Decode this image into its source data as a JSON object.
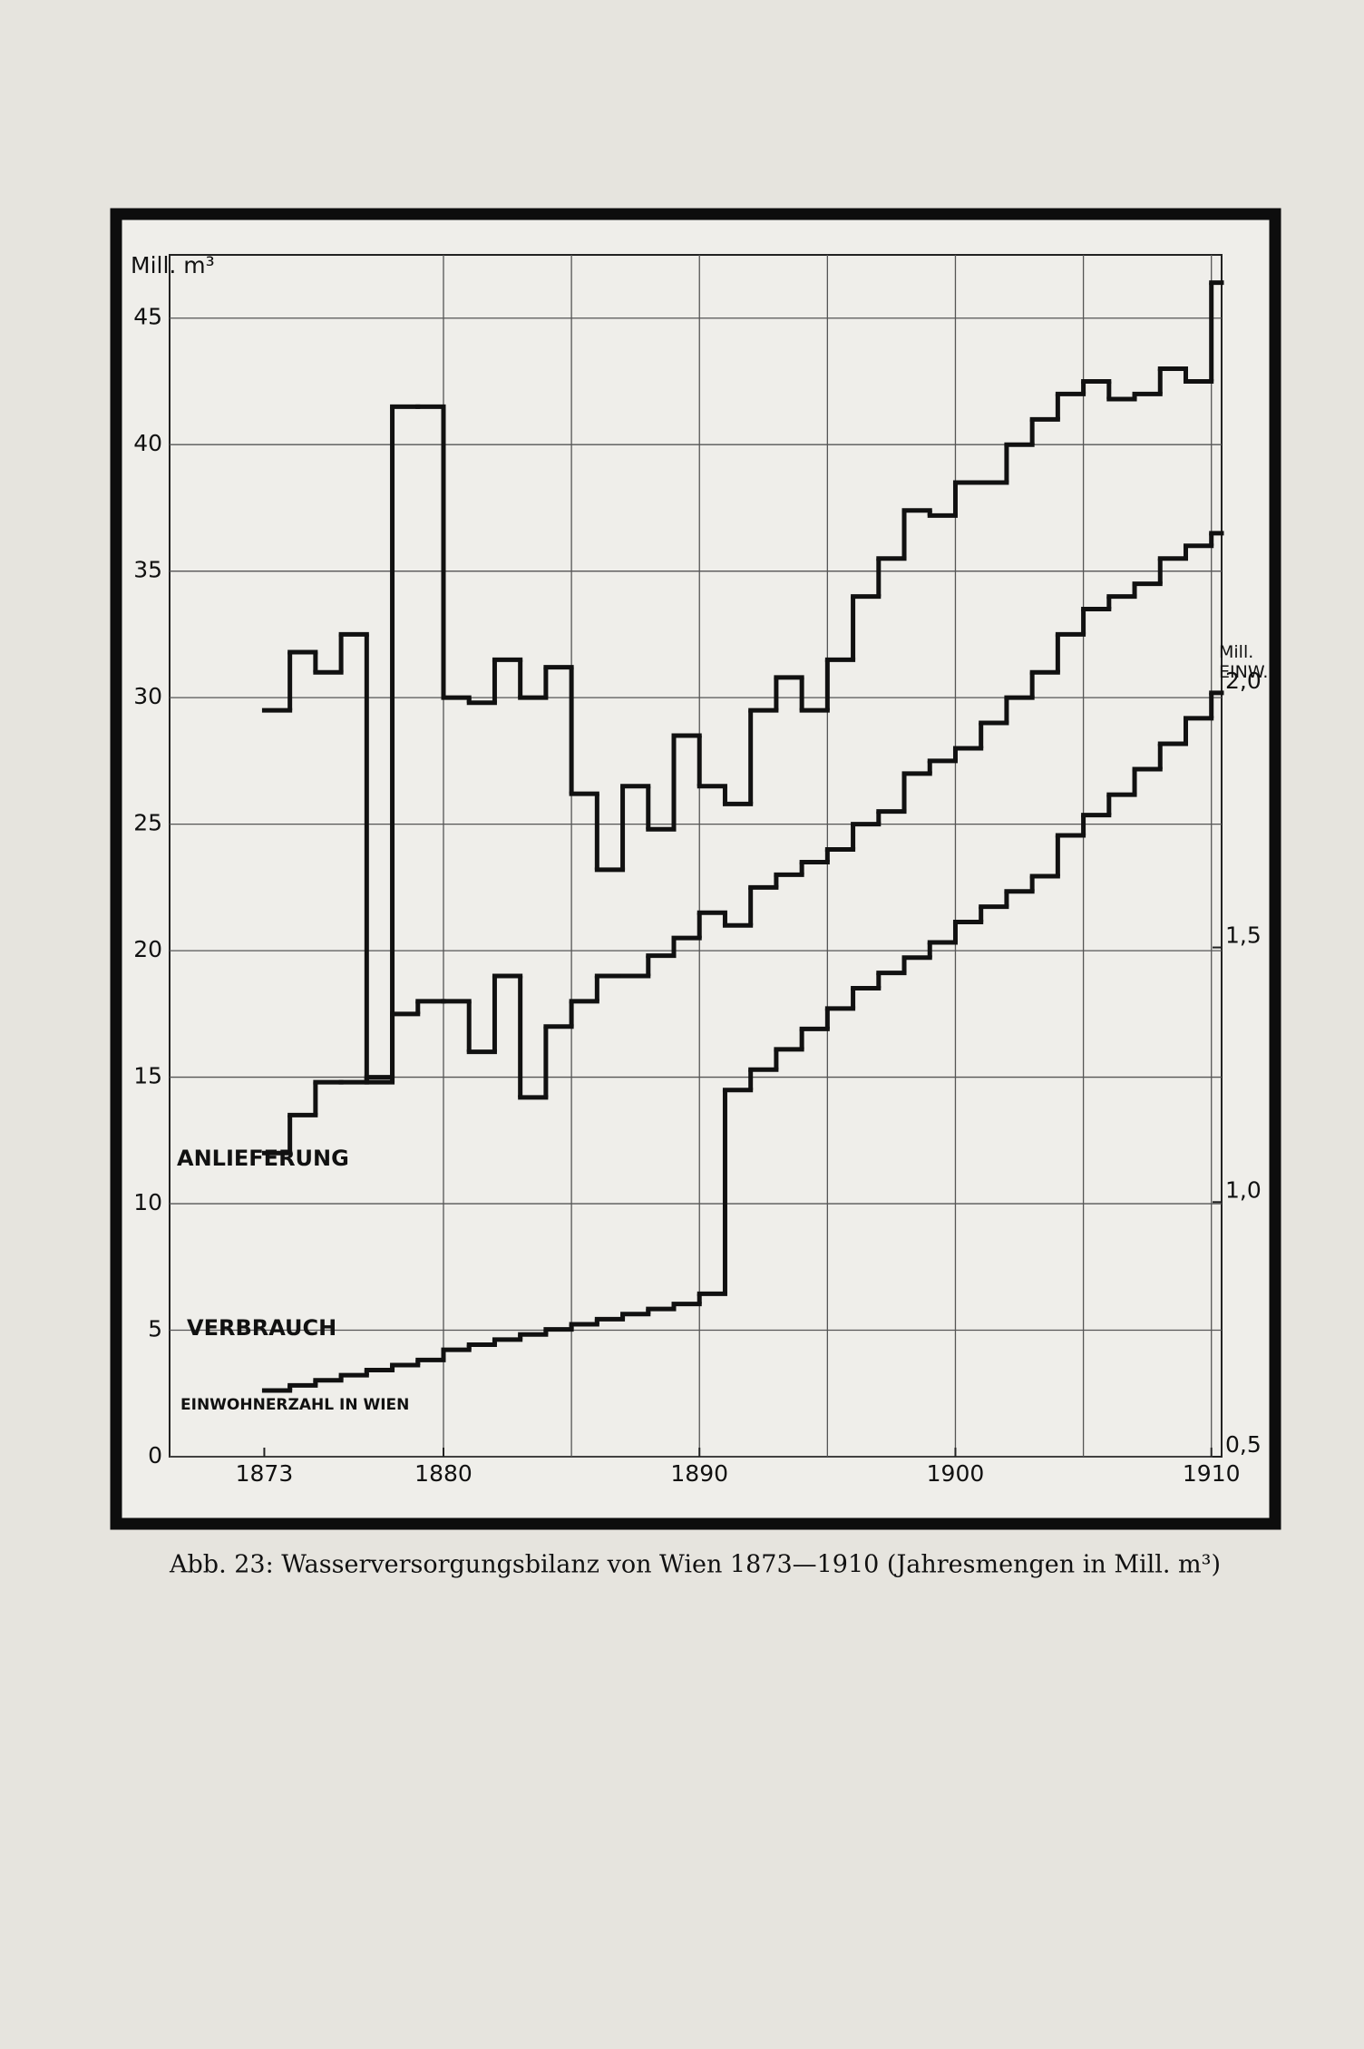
{
  "chart_data": {
    "type": "step",
    "caption": "Abb. 23: Wasserversorgungsbilanz von Wien 1873—1910 (Jahresmengen in Mill. m³)",
    "y_label": "Mill. m³",
    "y2_label": "Mill. EINW.",
    "x": [
      1873,
      1874,
      1875,
      1876,
      1877,
      1878,
      1879,
      1880,
      1881,
      1882,
      1883,
      1884,
      1885,
      1886,
      1887,
      1888,
      1889,
      1890,
      1891,
      1892,
      1893,
      1894,
      1895,
      1896,
      1897,
      1898,
      1899,
      1900,
      1901,
      1902,
      1903,
      1904,
      1905,
      1906,
      1907,
      1908,
      1909,
      1910
    ],
    "series": [
      {
        "name": "ANLIEFERUNG",
        "color": "#111111",
        "values": [
          29.5,
          31.8,
          31.0,
          32.5,
          14.8,
          41.5,
          41.5,
          30.0,
          29.8,
          31.5,
          30.0,
          31.2,
          26.2,
          23.2,
          26.5,
          24.8,
          28.5,
          26.5,
          25.8,
          29.5,
          30.8,
          29.5,
          31.5,
          34.0,
          35.5,
          37.4,
          37.2,
          38.5,
          38.5,
          40.0,
          41.0,
          42.0,
          42.5,
          41.8,
          42.0,
          43.0,
          42.5,
          46.4
        ]
      },
      {
        "name": "VERBRAUCH",
        "color": "#111111",
        "values": [
          12.0,
          13.5,
          14.8,
          14.8,
          15.0,
          17.5,
          18.0,
          18.0,
          16.0,
          19.0,
          14.2,
          17.0,
          18.0,
          19.0,
          19.0,
          19.8,
          20.5,
          21.5,
          21.0,
          22.5,
          23.0,
          23.5,
          24.0,
          25.0,
          25.5,
          27.0,
          27.5,
          28.0,
          29.0,
          30.0,
          31.0,
          32.5,
          33.5,
          34.0,
          34.5,
          35.5,
          36.0,
          36.5
        ]
      },
      {
        "name": "EINWOHNERZAHL IN WIEN",
        "color": "#111111",
        "axis": "y2",
        "values": [
          0.63,
          0.64,
          0.65,
          0.66,
          0.67,
          0.68,
          0.69,
          0.71,
          0.72,
          0.73,
          0.74,
          0.75,
          0.76,
          0.77,
          0.78,
          0.79,
          0.8,
          0.82,
          1.22,
          1.26,
          1.3,
          1.34,
          1.38,
          1.42,
          1.45,
          1.48,
          1.51,
          1.55,
          1.58,
          1.61,
          1.64,
          1.72,
          1.76,
          1.8,
          1.85,
          1.9,
          1.95,
          2.0
        ]
      }
    ],
    "xlim": [
      1869.3,
      1910.4
    ],
    "xticks": [
      1873,
      1880,
      1890,
      1900,
      1910
    ],
    "xgrid": [
      1880,
      1885,
      1890,
      1895,
      1900,
      1905,
      1910
    ],
    "ylim": [
      0,
      47.5
    ],
    "yticks": [
      0,
      5,
      10,
      15,
      20,
      25,
      30,
      35,
      40,
      45
    ],
    "y2lim": [
      0.5,
      2.86
    ],
    "y2ticks": [
      {
        "value": 0.5,
        "label": "0,5"
      },
      {
        "value": 1.0,
        "label": "1,0"
      },
      {
        "value": 1.5,
        "label": "1,5"
      },
      {
        "value": 2.0,
        "label": "2,0"
      }
    ],
    "grid": true
  }
}
